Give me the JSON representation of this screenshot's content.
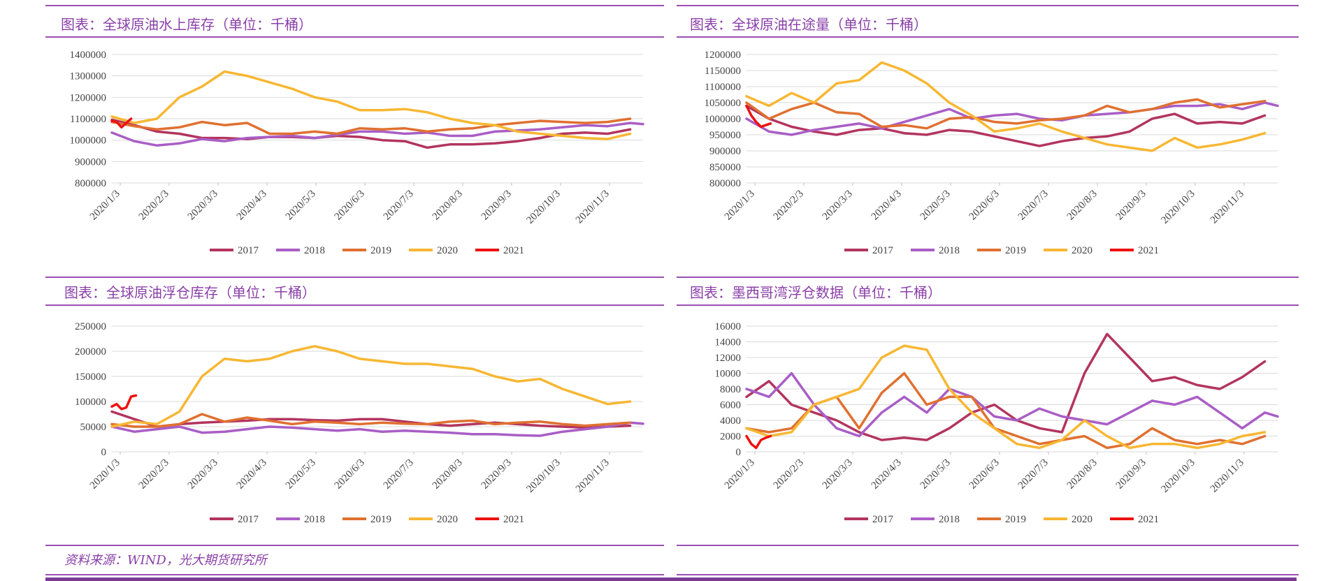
{
  "source_note": "资料来源：WIND，光大期货研究所",
  "colors": {
    "2017": "#b3355f",
    "2018": "#a95ec6",
    "2019": "#e07030",
    "2020": "#f7b733",
    "2021": "#ee1111",
    "title": "#8a3fa8",
    "rule": "#9b4fb3"
  },
  "chart_data": [
    {
      "type": "line",
      "title": "图表：全球原油水上库存（单位：千桶）",
      "ylim": [
        800000,
        1400000
      ],
      "yticks": [
        800000,
        900000,
        1000000,
        1100000,
        1200000,
        1300000,
        1400000
      ],
      "xlim": [
        0,
        330
      ],
      "xticks": [
        "2020/1/3",
        "2020/2/3",
        "2020/3/3",
        "2020/4/3",
        "2020/5/3",
        "2020/6/3",
        "2020/7/3",
        "2020/8/3",
        "2020/9/3",
        "2020/10/3",
        "2020/11/3"
      ],
      "grid": true,
      "legend": "bottom",
      "series": [
        {
          "name": "2017",
          "x": [
            0,
            14,
            28,
            42,
            56,
            70,
            84,
            98,
            112,
            126,
            140,
            154,
            168,
            182,
            196,
            210,
            224,
            238,
            252,
            266,
            280,
            294,
            308,
            322
          ],
          "values": [
            1095000,
            1070000,
            1040000,
            1030000,
            1010000,
            1010000,
            1005000,
            1015000,
            1015000,
            1010000,
            1020000,
            1015000,
            1000000,
            995000,
            965000,
            980000,
            980000,
            985000,
            995000,
            1010000,
            1030000,
            1035000,
            1030000,
            1050000
          ]
        },
        {
          "name": "2018",
          "x": [
            0,
            14,
            28,
            42,
            56,
            70,
            84,
            98,
            112,
            126,
            140,
            154,
            168,
            182,
            196,
            210,
            224,
            238,
            252,
            266,
            280,
            294,
            308,
            322,
            330
          ],
          "values": [
            1035000,
            995000,
            975000,
            985000,
            1005000,
            995000,
            1010000,
            1015000,
            1020000,
            1010000,
            1025000,
            1040000,
            1040000,
            1030000,
            1035000,
            1020000,
            1020000,
            1040000,
            1045000,
            1050000,
            1060000,
            1070000,
            1065000,
            1080000,
            1075000
          ]
        },
        {
          "name": "2019",
          "x": [
            0,
            14,
            28,
            42,
            56,
            70,
            84,
            98,
            112,
            126,
            140,
            154,
            168,
            182,
            196,
            210,
            224,
            238,
            252,
            266,
            280,
            294,
            308,
            322
          ],
          "values": [
            1085000,
            1065000,
            1050000,
            1060000,
            1085000,
            1070000,
            1080000,
            1030000,
            1030000,
            1040000,
            1030000,
            1055000,
            1050000,
            1055000,
            1040000,
            1050000,
            1055000,
            1070000,
            1080000,
            1090000,
            1085000,
            1080000,
            1085000,
            1100000
          ]
        },
        {
          "name": "2020",
          "x": [
            0,
            14,
            28,
            42,
            56,
            70,
            84,
            98,
            112,
            126,
            140,
            154,
            168,
            182,
            196,
            210,
            224,
            238,
            252,
            266,
            280,
            294,
            308,
            322
          ],
          "values": [
            1110000,
            1080000,
            1100000,
            1200000,
            1250000,
            1320000,
            1300000,
            1270000,
            1240000,
            1200000,
            1180000,
            1140000,
            1140000,
            1145000,
            1130000,
            1100000,
            1080000,
            1070000,
            1040000,
            1030000,
            1020000,
            1010000,
            1005000,
            1030000
          ]
        },
        {
          "name": "2021",
          "x": [
            0,
            3,
            6,
            9,
            12
          ],
          "values": [
            1090000,
            1085000,
            1060000,
            1080000,
            1100000
          ]
        }
      ]
    },
    {
      "type": "line",
      "title": "图表：全球原油在途量（单位：千桶）",
      "ylim": [
        800000,
        1200000
      ],
      "yticks": [
        800000,
        850000,
        900000,
        950000,
        1000000,
        1050000,
        1100000,
        1150000,
        1200000
      ],
      "xlim": [
        0,
        330
      ],
      "xticks": [
        "2020/1/3",
        "2020/2/3",
        "2020/3/3",
        "2020/4/3",
        "2020/5/3",
        "2020/6/3",
        "2020/7/3",
        "2020/8/3",
        "2020/9/3",
        "2020/10/3",
        "2020/11/3"
      ],
      "grid": true,
      "legend": "bottom",
      "series": [
        {
          "name": "2017",
          "x": [
            0,
            14,
            28,
            42,
            56,
            70,
            84,
            98,
            112,
            126,
            140,
            154,
            168,
            182,
            196,
            210,
            224,
            238,
            252,
            266,
            280,
            294,
            308,
            322
          ],
          "values": [
            1040000,
            1000000,
            975000,
            960000,
            950000,
            965000,
            970000,
            955000,
            950000,
            965000,
            960000,
            945000,
            930000,
            915000,
            930000,
            940000,
            945000,
            960000,
            1000000,
            1015000,
            985000,
            990000,
            985000,
            1010000
          ]
        },
        {
          "name": "2018",
          "x": [
            0,
            14,
            28,
            42,
            56,
            70,
            84,
            98,
            112,
            126,
            140,
            154,
            168,
            182,
            196,
            210,
            224,
            238,
            252,
            266,
            280,
            294,
            308,
            322,
            330
          ],
          "values": [
            1000000,
            960000,
            950000,
            965000,
            975000,
            985000,
            970000,
            990000,
            1010000,
            1030000,
            1000000,
            1010000,
            1015000,
            1000000,
            995000,
            1010000,
            1015000,
            1020000,
            1030000,
            1040000,
            1040000,
            1045000,
            1030000,
            1050000,
            1040000
          ]
        },
        {
          "name": "2019",
          "x": [
            0,
            14,
            28,
            42,
            56,
            70,
            84,
            98,
            112,
            126,
            140,
            154,
            168,
            182,
            196,
            210,
            224,
            238,
            252,
            266,
            280,
            294,
            308,
            322
          ],
          "values": [
            1050000,
            1000000,
            1030000,
            1050000,
            1020000,
            1015000,
            975000,
            980000,
            970000,
            1000000,
            1005000,
            990000,
            985000,
            995000,
            1000000,
            1010000,
            1040000,
            1020000,
            1030000,
            1050000,
            1060000,
            1035000,
            1045000,
            1055000
          ]
        },
        {
          "name": "2020",
          "x": [
            0,
            14,
            28,
            42,
            56,
            70,
            84,
            98,
            112,
            126,
            140,
            154,
            168,
            182,
            196,
            210,
            224,
            238,
            252,
            266,
            280,
            294,
            308,
            322
          ],
          "values": [
            1070000,
            1040000,
            1080000,
            1050000,
            1110000,
            1120000,
            1175000,
            1150000,
            1110000,
            1050000,
            1010000,
            960000,
            970000,
            985000,
            960000,
            940000,
            920000,
            910000,
            900000,
            940000,
            910000,
            920000,
            935000,
            955000
          ]
        },
        {
          "name": "2021",
          "x": [
            0,
            3,
            6,
            9,
            12,
            15
          ],
          "values": [
            1040000,
            1010000,
            990000,
            975000,
            980000,
            985000
          ]
        }
      ]
    },
    {
      "type": "line",
      "title": "图表：全球原油浮仓库存（单位：千桶）",
      "ylim": [
        0,
        250000
      ],
      "yticks": [
        0,
        50000,
        100000,
        150000,
        200000,
        250000
      ],
      "xlim": [
        0,
        330
      ],
      "xticks": [
        "2020/1/3",
        "2020/2/3",
        "2020/3/3",
        "2020/4/3",
        "2020/5/3",
        "2020/6/3",
        "2020/7/3",
        "2020/8/3",
        "2020/9/3",
        "2020/10/3",
        "2020/11/3"
      ],
      "grid": true,
      "legend": "bottom",
      "series": [
        {
          "name": "2017",
          "x": [
            0,
            14,
            28,
            42,
            56,
            70,
            84,
            98,
            112,
            126,
            140,
            154,
            168,
            182,
            196,
            210,
            224,
            238,
            252,
            266,
            280,
            294,
            308,
            322
          ],
          "values": [
            80000,
            65000,
            50000,
            55000,
            58000,
            60000,
            62000,
            65000,
            65000,
            63000,
            62000,
            65000,
            65000,
            60000,
            55000,
            52000,
            55000,
            58000,
            55000,
            52000,
            50000,
            48000,
            50000,
            52000
          ]
        },
        {
          "name": "2018",
          "x": [
            0,
            14,
            28,
            42,
            56,
            70,
            84,
            98,
            112,
            126,
            140,
            154,
            168,
            182,
            196,
            210,
            224,
            238,
            252,
            266,
            280,
            294,
            308,
            322,
            330
          ],
          "values": [
            50000,
            40000,
            45000,
            50000,
            38000,
            40000,
            45000,
            50000,
            48000,
            45000,
            42000,
            45000,
            40000,
            42000,
            40000,
            38000,
            35000,
            35000,
            33000,
            32000,
            40000,
            45000,
            50000,
            58000,
            56000
          ]
        },
        {
          "name": "2019",
          "x": [
            0,
            14,
            28,
            42,
            56,
            70,
            84,
            98,
            112,
            126,
            140,
            154,
            168,
            182,
            196,
            210,
            224,
            238,
            252,
            266,
            280,
            294,
            308,
            322
          ],
          "values": [
            55000,
            50000,
            50000,
            55000,
            75000,
            60000,
            68000,
            62000,
            55000,
            60000,
            58000,
            55000,
            58000,
            56000,
            55000,
            60000,
            62000,
            55000,
            58000,
            60000,
            55000,
            52000,
            55000,
            58000
          ]
        },
        {
          "name": "2020",
          "x": [
            0,
            14,
            28,
            42,
            56,
            70,
            84,
            98,
            112,
            126,
            140,
            154,
            168,
            182,
            196,
            210,
            224,
            238,
            252,
            266,
            280,
            294,
            308,
            322
          ],
          "values": [
            50000,
            60000,
            55000,
            80000,
            150000,
            185000,
            180000,
            185000,
            200000,
            210000,
            200000,
            185000,
            180000,
            175000,
            175000,
            170000,
            165000,
            150000,
            140000,
            145000,
            125000,
            110000,
            95000,
            100000
          ]
        },
        {
          "name": "2021",
          "x": [
            0,
            3,
            6,
            9,
            12,
            15
          ],
          "values": [
            90000,
            95000,
            85000,
            88000,
            110000,
            112000
          ]
        }
      ]
    },
    {
      "type": "line",
      "title": "图表：墨西哥湾浮仓数据（单位：千桶）",
      "ylim": [
        0,
        16000
      ],
      "yticks": [
        0,
        2000,
        4000,
        6000,
        8000,
        10000,
        12000,
        14000,
        16000
      ],
      "xlim": [
        0,
        330
      ],
      "xticks": [
        "2020/1/3",
        "2020/2/3",
        "2020/3/3",
        "2020/4/3",
        "2020/5/3",
        "2020/6/3",
        "2020/7/3",
        "2020/8/3",
        "2020/9/3",
        "2020/10/3",
        "2020/11/3"
      ],
      "grid": true,
      "legend": "bottom",
      "series": [
        {
          "name": "2017",
          "x": [
            0,
            14,
            28,
            42,
            56,
            70,
            84,
            98,
            112,
            126,
            140,
            154,
            168,
            182,
            196,
            210,
            224,
            238,
            252,
            266,
            280,
            294,
            308,
            322
          ],
          "values": [
            7000,
            9000,
            6000,
            5000,
            4000,
            2500,
            1500,
            1800,
            1500,
            3000,
            5000,
            6000,
            4000,
            3000,
            2500,
            10000,
            15000,
            12000,
            9000,
            9500,
            8500,
            8000,
            9500,
            11500
          ]
        },
        {
          "name": "2018",
          "x": [
            0,
            14,
            28,
            42,
            56,
            70,
            84,
            98,
            112,
            126,
            140,
            154,
            168,
            182,
            196,
            210,
            224,
            238,
            252,
            266,
            280,
            294,
            308,
            322,
            330
          ],
          "values": [
            8000,
            7000,
            10000,
            6000,
            3000,
            2000,
            5000,
            7000,
            5000,
            8000,
            7000,
            4500,
            4000,
            5500,
            4500,
            4000,
            3500,
            5000,
            6500,
            6000,
            7000,
            5000,
            3000,
            5000,
            4500
          ]
        },
        {
          "name": "2019",
          "x": [
            0,
            14,
            28,
            42,
            56,
            70,
            84,
            98,
            112,
            126,
            140,
            154,
            168,
            182,
            196,
            210,
            224,
            238,
            252,
            266,
            280,
            294,
            308,
            322
          ],
          "values": [
            3000,
            2500,
            3000,
            6000,
            7000,
            3000,
            7500,
            10000,
            6000,
            7000,
            7000,
            3000,
            2000,
            1000,
            1500,
            2000,
            500,
            1000,
            3000,
            1500,
            1000,
            1500,
            1000,
            2000
          ]
        },
        {
          "name": "2020",
          "x": [
            0,
            14,
            28,
            42,
            56,
            70,
            84,
            98,
            112,
            126,
            140,
            154,
            168,
            182,
            196,
            210,
            224,
            238,
            252,
            266,
            280,
            294,
            308,
            322
          ],
          "values": [
            3000,
            2000,
            2500,
            6000,
            7000,
            8000,
            12000,
            13500,
            13000,
            8000,
            5000,
            3000,
            1000,
            500,
            1500,
            4000,
            2000,
            500,
            1000,
            1000,
            500,
            1000,
            2000,
            2500
          ]
        },
        {
          "name": "2021",
          "x": [
            0,
            3,
            6,
            9,
            12,
            15
          ],
          "values": [
            2000,
            1000,
            500,
            1500,
            1800,
            2000
          ]
        }
      ]
    }
  ]
}
